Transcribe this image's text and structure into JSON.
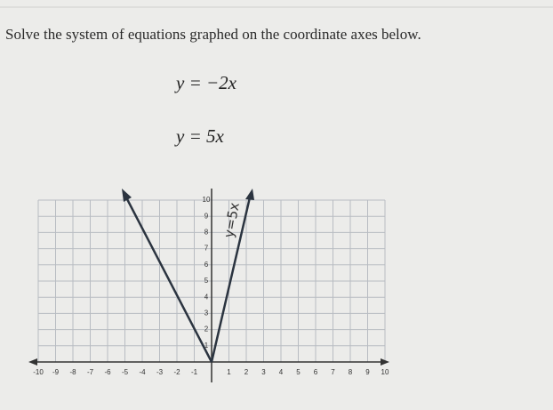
{
  "instruction": "Solve the system of equations graphed on the coordinate axes below.",
  "equations": [
    "y = −2x",
    "y = 5x"
  ],
  "graph": {
    "x_ticks": [
      -10,
      -9,
      -8,
      -7,
      -6,
      -5,
      -4,
      -3,
      -2,
      -1,
      1,
      2,
      3,
      4,
      5,
      6,
      7,
      8,
      9,
      10
    ],
    "y_ticks": [
      1,
      2,
      3,
      4,
      5,
      6,
      7,
      8,
      9,
      10
    ],
    "line_label": "y=5x"
  }
}
